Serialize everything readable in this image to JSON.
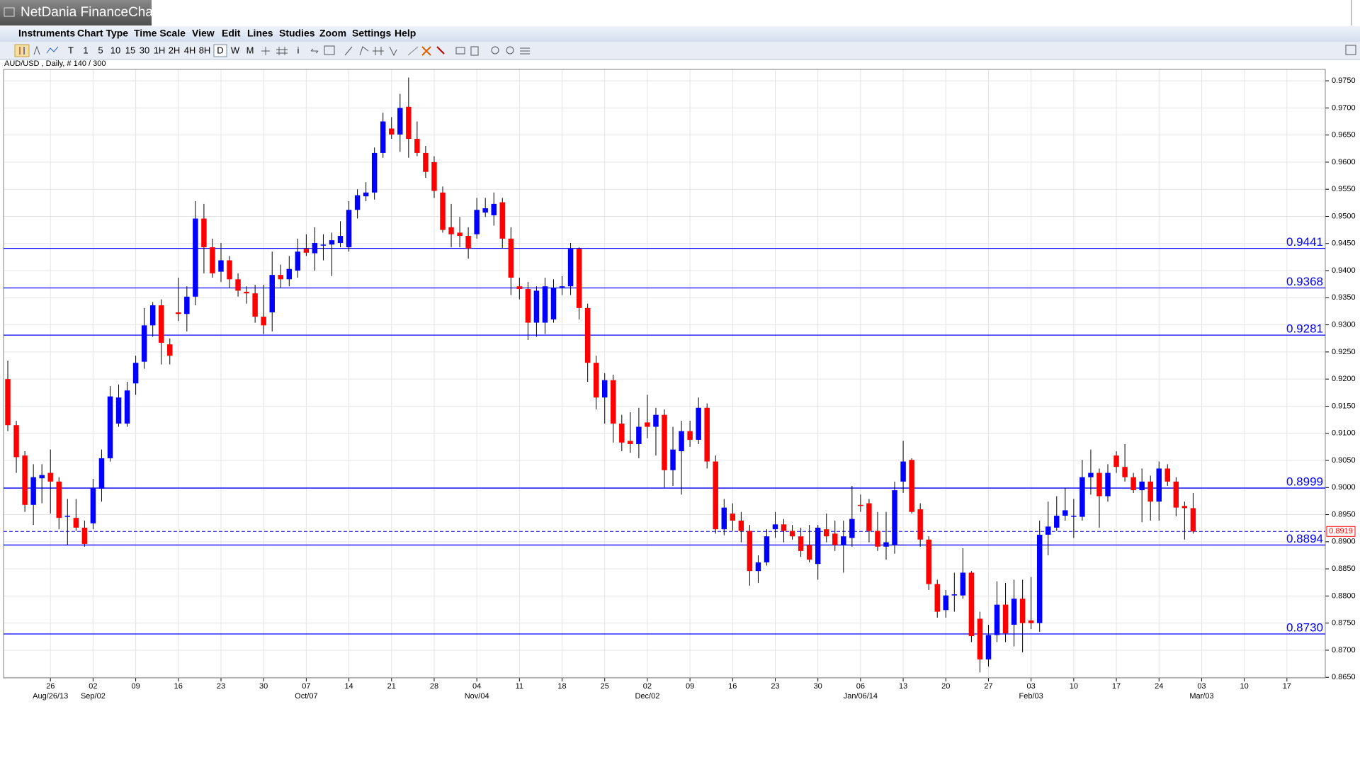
{
  "window": {
    "title": "NetDania FinanceChart",
    "menu": [
      "Instruments",
      "Chart Type",
      "Time Scale",
      "View",
      "Edit",
      "Lines",
      "Studies",
      "Zoom",
      "Settings",
      "Help"
    ],
    "toolbar": [
      "T",
      "1",
      "5",
      "10",
      "15",
      "30",
      "1H",
      "2H",
      "4H",
      "8H",
      "D",
      "W",
      "M",
      "i"
    ]
  },
  "chart_data": {
    "type": "candlestick",
    "title": "AUD/USD , Daily, # 140 / 300",
    "up_color": "#0000ff",
    "down_color": "#ff0000",
    "wick_color": "#000000",
    "grid": true,
    "x": [
      "2013-08-19",
      "2013-08-20",
      "2013-08-21",
      "2013-08-22",
      "2013-08-23",
      "2013-08-26",
      "2013-08-27",
      "2013-08-28",
      "2013-08-29",
      "2013-08-30",
      "2013-09-02",
      "2013-09-03",
      "2013-09-04",
      "2013-09-05",
      "2013-09-06",
      "2013-09-09",
      "2013-09-10",
      "2013-09-11",
      "2013-09-12",
      "2013-09-13",
      "2013-09-16",
      "2013-09-17",
      "2013-09-18",
      "2013-09-19",
      "2013-09-20",
      "2013-09-23",
      "2013-09-24",
      "2013-09-25",
      "2013-09-26",
      "2013-09-27",
      "2013-09-30",
      "2013-10-01",
      "2013-10-02",
      "2013-10-03",
      "2013-10-04",
      "2013-10-07",
      "2013-10-08",
      "2013-10-09",
      "2013-10-10",
      "2013-10-11",
      "2013-10-14",
      "2013-10-15",
      "2013-10-16",
      "2013-10-17",
      "2013-10-18",
      "2013-10-21",
      "2013-10-22",
      "2013-10-23",
      "2013-10-24",
      "2013-10-25",
      "2013-10-28",
      "2013-10-29",
      "2013-10-30",
      "2013-10-31",
      "2013-11-01",
      "2013-11-04",
      "2013-11-05",
      "2013-11-06",
      "2013-11-07",
      "2013-11-08",
      "2013-11-11",
      "2013-11-12",
      "2013-11-13",
      "2013-11-14",
      "2013-11-15",
      "2013-11-18",
      "2013-11-19",
      "2013-11-20",
      "2013-11-21",
      "2013-11-22",
      "2013-11-25",
      "2013-11-26",
      "2013-11-27",
      "2013-11-28",
      "2013-11-29",
      "2013-12-02",
      "2013-12-03",
      "2013-12-04",
      "2013-12-05",
      "2013-12-06",
      "2013-12-09",
      "2013-12-10",
      "2013-12-11",
      "2013-12-12",
      "2013-12-13",
      "2013-12-16",
      "2013-12-17",
      "2013-12-18",
      "2013-12-19",
      "2013-12-20",
      "2013-12-23",
      "2013-12-24",
      "2013-12-25",
      "2013-12-26",
      "2013-12-27",
      "2013-12-30",
      "2013-12-31",
      "2014-01-01",
      "2014-01-02",
      "2014-01-03",
      "2014-01-06",
      "2014-01-07",
      "2014-01-08",
      "2014-01-09",
      "2014-01-10",
      "2014-01-13",
      "2014-01-14",
      "2014-01-15",
      "2014-01-16",
      "2014-01-17",
      "2014-01-20",
      "2014-01-21",
      "2014-01-22",
      "2014-01-23",
      "2014-01-24",
      "2014-01-27",
      "2014-01-28",
      "2014-01-29",
      "2014-01-30",
      "2014-01-31",
      "2014-02-03",
      "2014-02-04",
      "2014-02-05",
      "2014-02-06",
      "2014-02-07",
      "2014-02-10",
      "2014-02-11",
      "2014-02-12",
      "2014-02-13",
      "2014-02-14",
      "2014-02-17",
      "2014-02-18",
      "2014-02-19",
      "2014-02-20",
      "2014-02-21",
      "2014-02-24",
      "2014-02-25",
      "2014-02-26",
      "2014-02-27",
      "2014-02-28"
    ],
    "open": [
      0.92,
      0.9115,
      0.9059,
      0.8968,
      0.9017,
      0.9027,
      0.9011,
      0.8946,
      0.8944,
      0.8926,
      0.8934,
      0.8998,
      0.9054,
      0.9118,
      0.9118,
      0.9192,
      0.9232,
      0.9299,
      0.9336,
      0.9264,
      0.9323,
      0.932,
      0.9352,
      0.9496,
      0.9443,
      0.9398,
      0.9419,
      0.9384,
      0.9361,
      0.9358,
      0.9315,
      0.9323,
      0.9392,
      0.9384,
      0.94,
      0.944,
      0.9432,
      0.9447,
      0.9448,
      0.9451,
      0.9443,
      0.9512,
      0.9537,
      0.9544,
      0.9617,
      0.9662,
      0.9651,
      0.9702,
      0.9643,
      0.9617,
      0.96,
      0.9544,
      0.948,
      0.947,
      0.9464,
      0.9467,
      0.9507,
      0.9502,
      0.9526,
      0.9459,
      0.9371,
      0.9366,
      0.9304,
      0.9304,
      0.931,
      0.9371,
      0.9371,
      0.944,
      0.9331,
      0.923,
      0.9166,
      0.9198,
      0.9118,
      0.9086,
      0.908,
      0.912,
      0.9112,
      0.9134,
      0.9032,
      0.9067,
      0.9104,
      0.9088,
      0.9147,
      0.9048,
      0.8923,
      0.8952,
      0.8939,
      0.892,
      0.8846,
      0.8862,
      0.8923,
      0.8932,
      0.892,
      0.891,
      0.8894,
      0.8859,
      0.8923,
      0.8915,
      0.8894,
      0.8907,
      0.8968,
      0.8971,
      0.892,
      0.8891,
      0.8894,
      0.9011,
      0.9051,
      0.896,
      0.8904,
      0.8822,
      0.8774,
      0.8803,
      0.8801,
      0.8843,
      0.8758,
      0.8683,
      0.8728,
      0.8784,
      0.8747,
      0.8795,
      0.8755,
      0.875,
      0.8913,
      0.8926,
      0.8948,
      0.8946,
      0.8946,
      0.9019,
      0.9027,
      0.8984,
      0.9059,
      0.9038,
      0.9019,
      0.8995,
      0.9011,
      0.8974,
      0.9035,
      0.9011,
      0.8966,
      0.8962
    ],
    "high": [
      0.9234,
      0.9123,
      0.9067,
      0.9043,
      0.9043,
      0.907,
      0.9019,
      0.8979,
      0.8979,
      0.8939,
      0.9016,
      0.907,
      0.9187,
      0.919,
      0.9195,
      0.9243,
      0.9331,
      0.9342,
      0.9347,
      0.9275,
      0.9387,
      0.9371,
      0.9528,
      0.9523,
      0.9459,
      0.9451,
      0.9427,
      0.9395,
      0.9371,
      0.9374,
      0.9374,
      0.9435,
      0.9411,
      0.9427,
      0.9459,
      0.9467,
      0.948,
      0.9467,
      0.947,
      0.9491,
      0.9528,
      0.955,
      0.9563,
      0.9627,
      0.9691,
      0.9683,
      0.9726,
      0.9756,
      0.9675,
      0.963,
      0.9611,
      0.9555,
      0.9523,
      0.9499,
      0.948,
      0.9534,
      0.9534,
      0.9544,
      0.9534,
      0.948,
      0.9387,
      0.9379,
      0.9371,
      0.9387,
      0.9384,
      0.939,
      0.9451,
      0.9443,
      0.9339,
      0.9243,
      0.9211,
      0.9208,
      0.9134,
      0.9139,
      0.9147,
      0.9171,
      0.9147,
      0.9144,
      0.9112,
      0.9123,
      0.9123,
      0.9166,
      0.9155,
      0.9059,
      0.8979,
      0.8971,
      0.8955,
      0.8931,
      0.8875,
      0.8923,
      0.8955,
      0.8942,
      0.8931,
      0.8926,
      0.8931,
      0.8931,
      0.8952,
      0.8939,
      0.8939,
      0.9003,
      0.8987,
      0.8979,
      0.8955,
      0.8955,
      0.9011,
      0.9086,
      0.9054,
      0.8971,
      0.891,
      0.883,
      0.8811,
      0.8843,
      0.8888,
      0.8846,
      0.8771,
      0.8747,
      0.8827,
      0.8824,
      0.883,
      0.883,
      0.8835,
      0.8939,
      0.8974,
      0.8984,
      0.8999,
      0.8979,
      0.9051,
      0.907,
      0.9035,
      0.9043,
      0.9067,
      0.908,
      0.9027,
      0.9035,
      0.9022,
      0.9048,
      0.9043,
      0.9019,
      0.8974,
      0.899
    ],
    "low": [
      0.9104,
      0.9027,
      0.8955,
      0.8931,
      0.8971,
      0.8952,
      0.8923,
      0.8894,
      0.892,
      0.8891,
      0.8923,
      0.8974,
      0.9048,
      0.9112,
      0.9112,
      0.9171,
      0.9219,
      0.9278,
      0.9227,
      0.9227,
      0.9307,
      0.9288,
      0.9336,
      0.9395,
      0.9387,
      0.9379,
      0.9368,
      0.9352,
      0.9339,
      0.9304,
      0.9283,
      0.9288,
      0.9368,
      0.9371,
      0.9387,
      0.9427,
      0.94,
      0.9419,
      0.939,
      0.9443,
      0.9435,
      0.9496,
      0.9528,
      0.9531,
      0.9608,
      0.9643,
      0.9619,
      0.9608,
      0.9611,
      0.9571,
      0.9534,
      0.947,
      0.9443,
      0.9443,
      0.9422,
      0.9459,
      0.9499,
      0.9483,
      0.9441,
      0.9355,
      0.9347,
      0.9272,
      0.9278,
      0.9283,
      0.9304,
      0.9355,
      0.9355,
      0.931,
      0.9195,
      0.9144,
      0.9118,
      0.9083,
      0.9067,
      0.9064,
      0.9054,
      0.9091,
      0.9059,
      0.9,
      0.9003,
      0.8987,
      0.9075,
      0.908,
      0.9035,
      0.8915,
      0.8912,
      0.892,
      0.8899,
      0.8819,
      0.8824,
      0.8856,
      0.8907,
      0.8899,
      0.8904,
      0.8872,
      0.8862,
      0.883,
      0.8899,
      0.8883,
      0.8843,
      0.8891,
      0.8955,
      0.8899,
      0.8883,
      0.8867,
      0.8878,
      0.899,
      0.8952,
      0.8891,
      0.8811,
      0.876,
      0.876,
      0.8771,
      0.8795,
      0.8715,
      0.8659,
      0.867,
      0.8715,
      0.8715,
      0.8707,
      0.8696,
      0.8739,
      0.8734,
      0.8875,
      0.892,
      0.8939,
      0.8907,
      0.8939,
      0.8987,
      0.8926,
      0.8974,
      0.9027,
      0.9011,
      0.899,
      0.8936,
      0.8939,
      0.8939,
      0.9003,
      0.8947,
      0.8904,
      0.8915
    ],
    "close": [
      0.9115,
      0.9056,
      0.8968,
      0.9019,
      0.9023,
      0.9011,
      0.8944,
      0.8948,
      0.8926,
      0.8896,
      0.8999,
      0.9054,
      0.9168,
      0.9166,
      0.9179,
      0.923,
      0.9299,
      0.9336,
      0.9267,
      0.9243,
      0.932,
      0.9352,
      0.9496,
      0.9443,
      0.9395,
      0.9419,
      0.9384,
      0.9363,
      0.9358,
      0.9315,
      0.9299,
      0.9392,
      0.9384,
      0.9403,
      0.9435,
      0.9433,
      0.9451,
      0.9448,
      0.9456,
      0.9464,
      0.9512,
      0.9539,
      0.9544,
      0.9617,
      0.9675,
      0.9651,
      0.97,
      0.9643,
      0.9617,
      0.9582,
      0.9547,
      0.9475,
      0.9467,
      0.9464,
      0.9441,
      0.9512,
      0.9515,
      0.9523,
      0.9459,
      0.9387,
      0.9366,
      0.9304,
      0.9363,
      0.9371,
      0.9368,
      0.9371,
      0.944,
      0.9331,
      0.923,
      0.9166,
      0.9198,
      0.9118,
      0.9083,
      0.908,
      0.9112,
      0.9112,
      0.9134,
      0.9032,
      0.907,
      0.9104,
      0.9088,
      0.9147,
      0.9048,
      0.8923,
      0.8963,
      0.8939,
      0.892,
      0.8846,
      0.8862,
      0.891,
      0.8932,
      0.892,
      0.891,
      0.8883,
      0.8867,
      0.8926,
      0.891,
      0.8894,
      0.891,
      0.8942,
      0.8966,
      0.892,
      0.8891,
      0.8899,
      0.8995,
      0.9048,
      0.8955,
      0.8904,
      0.8822,
      0.8771,
      0.8801,
      0.8803,
      0.8843,
      0.8726,
      0.8683,
      0.8728,
      0.8784,
      0.8731,
      0.8795,
      0.875,
      0.875,
      0.8913,
      0.8928,
      0.8948,
      0.8958,
      0.8948,
      0.9019,
      0.9027,
      0.8984,
      0.9027,
      0.9038,
      0.9019,
      0.8995,
      0.9011,
      0.8974,
      0.9035,
      0.9011,
      0.8963,
      0.8962,
      0.8919
    ],
    "xlim": [
      "2013-08-19",
      "2014-03-21"
    ],
    "xticks": [
      {
        "value": "2013-08-26",
        "label": "26"
      },
      {
        "value": "2013-09-02",
        "label": "02"
      },
      {
        "value": "2013-09-09",
        "label": "09"
      },
      {
        "value": "2013-09-16",
        "label": "16"
      },
      {
        "value": "2013-09-23",
        "label": "23"
      },
      {
        "value": "2013-09-30",
        "label": "30"
      },
      {
        "value": "2013-10-07",
        "label": "07"
      },
      {
        "value": "2013-10-14",
        "label": "14"
      },
      {
        "value": "2013-10-21",
        "label": "21"
      },
      {
        "value": "2013-10-28",
        "label": "28"
      },
      {
        "value": "2013-11-04",
        "label": "04"
      },
      {
        "value": "2013-11-11",
        "label": "11"
      },
      {
        "value": "2013-11-18",
        "label": "18"
      },
      {
        "value": "2013-11-25",
        "label": "25"
      },
      {
        "value": "2013-12-02",
        "label": "02"
      },
      {
        "value": "2013-12-09",
        "label": "09"
      },
      {
        "value": "2013-12-16",
        "label": "16"
      },
      {
        "value": "2013-12-23",
        "label": "23"
      },
      {
        "value": "2013-12-30",
        "label": "30"
      },
      {
        "value": "2014-01-06",
        "label": "06"
      },
      {
        "value": "2014-01-13",
        "label": "13"
      },
      {
        "value": "2014-01-20",
        "label": "20"
      },
      {
        "value": "2014-01-27",
        "label": "27"
      },
      {
        "value": "2014-02-03",
        "label": "03"
      },
      {
        "value": "2014-02-10",
        "label": "10"
      },
      {
        "value": "2014-02-17",
        "label": "17"
      },
      {
        "value": "2014-02-24",
        "label": "24"
      },
      {
        "value": "2014-03-03",
        "label": "03"
      },
      {
        "value": "2014-03-10",
        "label": "10"
      },
      {
        "value": "2014-03-17",
        "label": "17"
      }
    ],
    "xticks_secondary": [
      {
        "value": "2013-08-26",
        "label": "Aug/26/13"
      },
      {
        "value": "2013-09-02",
        "label": "Sep/02"
      },
      {
        "value": "2013-10-07",
        "label": "Oct/07"
      },
      {
        "value": "2013-11-04",
        "label": "Nov/04"
      },
      {
        "value": "2013-12-02",
        "label": "Dec/02"
      },
      {
        "value": "2014-01-06",
        "label": "Jan/06/14"
      },
      {
        "value": "2014-02-03",
        "label": "Feb/03"
      },
      {
        "value": "2014-03-03",
        "label": "Mar/03"
      }
    ],
    "ylim": [
      0.8649,
      0.9771
    ],
    "yticks": [
      {
        "value": 0.865,
        "label": "0.8650"
      },
      {
        "value": 0.87,
        "label": "0.8700"
      },
      {
        "value": 0.875,
        "label": "0.8750"
      },
      {
        "value": 0.88,
        "label": "0.8800"
      },
      {
        "value": 0.885,
        "label": "0.8850"
      },
      {
        "value": 0.89,
        "label": "0.8900"
      },
      {
        "value": 0.895,
        "label": "0.8950"
      },
      {
        "value": 0.9,
        "label": "0.9000"
      },
      {
        "value": 0.905,
        "label": "0.9050"
      },
      {
        "value": 0.91,
        "label": "0.9100"
      },
      {
        "value": 0.915,
        "label": "0.9150"
      },
      {
        "value": 0.92,
        "label": "0.9200"
      },
      {
        "value": 0.925,
        "label": "0.9250"
      },
      {
        "value": 0.93,
        "label": "0.9300"
      },
      {
        "value": 0.935,
        "label": "0.9350"
      },
      {
        "value": 0.94,
        "label": "0.9400"
      },
      {
        "value": 0.945,
        "label": "0.9450"
      },
      {
        "value": 0.95,
        "label": "0.9500"
      },
      {
        "value": 0.955,
        "label": "0.9550"
      },
      {
        "value": 0.96,
        "label": "0.9600"
      },
      {
        "value": 0.965,
        "label": "0.9650"
      },
      {
        "value": 0.97,
        "label": "0.9700"
      },
      {
        "value": 0.975,
        "label": "0.9750"
      }
    ],
    "hlines": [
      0.9441,
      0.9368,
      0.9281,
      0.8999,
      0.8894,
      {
        "value": 0.873,
        "label": "0.8730"
      }
    ],
    "hline_color": "#0000ff",
    "last_price": 0.8919,
    "last_price_color": "#ff0000"
  }
}
